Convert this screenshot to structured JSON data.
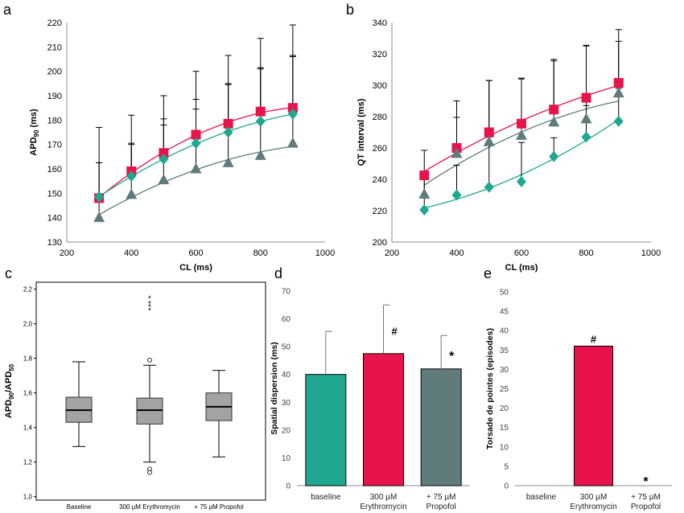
{
  "colors": {
    "baseline": "#1fa88f",
    "erythromycin": "#e8134b",
    "propofol": "#607b7c",
    "box_fill": "#a3a3a3",
    "errorbar": "#000000"
  },
  "panels": {
    "a": {
      "letter": "a"
    },
    "b": {
      "letter": "b"
    },
    "c": {
      "letter": "c"
    },
    "d": {
      "letter": "d"
    },
    "e": {
      "letter": "e"
    }
  },
  "chart_data": [
    {
      "panel": "a",
      "type": "scatter",
      "xlabel": "CL (ms)",
      "ylabel_main": "APD",
      "ylabel_sub": "90",
      "ylabel_unit": " (ms)",
      "xlim": [
        200,
        1000
      ],
      "ylim": [
        130,
        220
      ],
      "xticks": [
        200,
        400,
        600,
        800,
        1000
      ],
      "yticks": [
        130,
        140,
        150,
        160,
        170,
        180,
        190,
        200,
        210,
        220
      ],
      "x": [
        300,
        400,
        500,
        600,
        700,
        800,
        900
      ],
      "series": [
        {
          "key": "erythromycin",
          "marker": "square",
          "values": [
            148,
            159,
            166.5,
            174,
            178.5,
            183.5,
            185
          ],
          "err": [
            29,
            23,
            23.5,
            26,
            28,
            30,
            34
          ]
        },
        {
          "key": "baseline",
          "marker": "diamond",
          "values": [
            148.5,
            157,
            164,
            170.5,
            175,
            179.5,
            182.5
          ],
          "err": [
            14,
            13,
            16.5,
            18,
            20,
            22,
            23.5
          ]
        },
        {
          "key": "propofol",
          "marker": "triangle",
          "values": [
            140,
            149.5,
            155.5,
            160,
            162.5,
            165.5,
            170.5
          ],
          "err": [
            22.5,
            21,
            22.5,
            24.5,
            32,
            35.5,
            36
          ]
        }
      ]
    },
    {
      "panel": "b",
      "type": "scatter",
      "xlabel": "CL (ms)",
      "ylabel": "QT interval  (ms)",
      "xlim": [
        200,
        1000
      ],
      "ylim": [
        200,
        340
      ],
      "xticks": [
        200,
        400,
        600,
        800,
        1000
      ],
      "yticks": [
        200,
        220,
        240,
        260,
        280,
        300,
        320,
        340
      ],
      "x": [
        300,
        400,
        500,
        600,
        700,
        800,
        900
      ],
      "series": [
        {
          "key": "erythromycin",
          "marker": "square",
          "values": [
            242.5,
            260,
            270,
            275.5,
            284.5,
            292,
            301.5
          ],
          "err": [
            16,
            30,
            33,
            28.5,
            31,
            33,
            34
          ]
        },
        {
          "key": "propofol",
          "marker": "triangle",
          "values": [
            230.5,
            256.5,
            264,
            268,
            276.5,
            278.5,
            295
          ],
          "err": [
            12,
            23,
            39,
            36.5,
            40,
            47,
            33
          ]
        },
        {
          "key": "baseline",
          "marker": "diamond",
          "values": [
            220.5,
            230,
            235,
            238.5,
            254.5,
            267,
            277
          ],
          "err": [
            22,
            19,
            32,
            25,
            12,
            20,
            21
          ]
        }
      ]
    },
    {
      "panel": "c",
      "type": "box",
      "ylabel_main": "APD",
      "ylabel_sub1": "90",
      "ylabel_mid": "/APD",
      "ylabel_sub2": "50",
      "ylim": [
        0.98,
        2.24
      ],
      "yticks": [
        "1,0",
        "1,2",
        "1,4",
        "1,6",
        "1,8",
        "2,0",
        "2,2"
      ],
      "ytick_values": [
        1.0,
        1.2,
        1.4,
        1.6,
        1.8,
        2.0,
        2.2
      ],
      "categories": [
        "Baseline",
        "300 µM Erythromycin",
        "+ 75 µM Propofol"
      ],
      "boxes": [
        {
          "whisker_low": 1.29,
          "q1": 1.43,
          "median": 1.5,
          "q3": 1.575,
          "whisker_high": 1.78
        },
        {
          "whisker_low": 1.2,
          "q1": 1.42,
          "median": 1.5,
          "q3": 1.57,
          "whisker_high": 1.76
        },
        {
          "whisker_low": 1.23,
          "q1": 1.44,
          "median": 1.52,
          "q3": 1.6,
          "whisker_high": 1.73
        }
      ],
      "outliers": [
        {
          "box": 1,
          "value": 1.79,
          "symbol": "o"
        },
        {
          "box": 1,
          "value": 1.16,
          "symbol": "o"
        },
        {
          "box": 1,
          "value": 1.14,
          "symbol": "o"
        }
      ],
      "extremes": [
        {
          "box": 1,
          "value": 2.15
        },
        {
          "box": 1,
          "value": 2.12
        },
        {
          "box": 1,
          "value": 2.1
        },
        {
          "box": 1,
          "value": 2.08
        }
      ]
    },
    {
      "panel": "d",
      "type": "bar",
      "ylabel": "Spatial dispersion (ms)",
      "ylim": [
        0,
        70
      ],
      "yticks": [
        0,
        10,
        20,
        30,
        40,
        50,
        60,
        70
      ],
      "categories": [
        "baseline",
        "300 µM\nErythromycin",
        "+ 75 µM\nPropofol"
      ],
      "values": [
        40,
        47.5,
        42
      ],
      "err": [
        15.5,
        17.5,
        12
      ],
      "annotations": [
        "",
        "#",
        "*"
      ]
    },
    {
      "panel": "e",
      "type": "bar",
      "ylabel": "Torsade de pointes (episodes)",
      "ylim": [
        0,
        50
      ],
      "yticks": [
        0,
        5,
        10,
        15,
        20,
        25,
        30,
        35,
        40,
        45,
        50
      ],
      "categories": [
        "baseline",
        "300 µM\nErythromycin",
        "+ 75 µM\nPropofol"
      ],
      "values": [
        0,
        36,
        0
      ],
      "annotations": [
        "",
        "#",
        "*"
      ]
    }
  ]
}
